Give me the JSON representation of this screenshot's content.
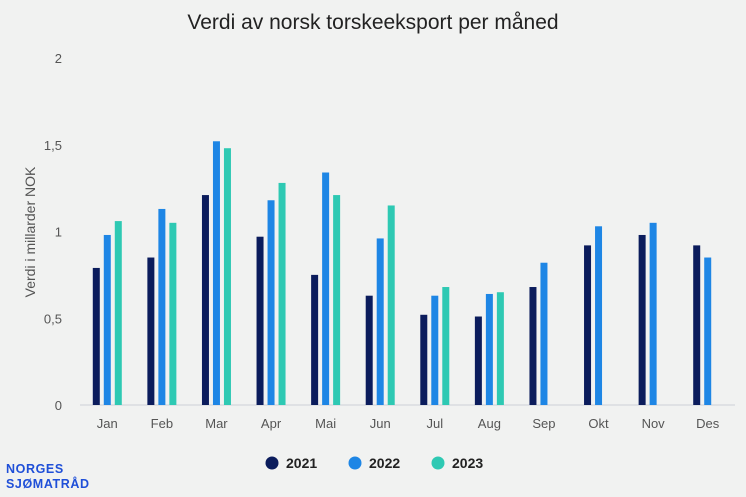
{
  "chart_data": {
    "type": "bar",
    "title": "Verdi av norsk torskeeksport per måned",
    "ylabel": "Verdi i millarder NOK",
    "xlabel": "",
    "categories": [
      "Jan",
      "Feb",
      "Mar",
      "Apr",
      "Mai",
      "Jun",
      "Jul",
      "Aug",
      "Sep",
      "Okt",
      "Nov",
      "Des"
    ],
    "ylim": [
      0,
      2
    ],
    "yticks": [
      {
        "value": 0,
        "label": "0"
      },
      {
        "value": 0.5,
        "label": "0,5"
      },
      {
        "value": 1,
        "label": "1"
      },
      {
        "value": 1.5,
        "label": "1,5"
      },
      {
        "value": 2,
        "label": "2"
      }
    ],
    "grid": false,
    "legend_position": "bottom-center",
    "series": [
      {
        "name": "2021",
        "color": "#0b1c5c",
        "values": [
          0.79,
          0.85,
          1.21,
          0.97,
          0.75,
          0.63,
          0.52,
          0.51,
          0.68,
          0.92,
          0.98,
          0.92
        ]
      },
      {
        "name": "2022",
        "color": "#1e86e5",
        "values": [
          0.98,
          1.13,
          1.52,
          1.18,
          1.34,
          0.96,
          0.63,
          0.64,
          0.82,
          1.03,
          1.05,
          0.85
        ]
      },
      {
        "name": "2023",
        "color": "#2ec9b3",
        "values": [
          1.06,
          1.05,
          1.48,
          1.28,
          1.21,
          1.15,
          0.68,
          0.65,
          null,
          null,
          null,
          null
        ]
      }
    ]
  },
  "logo": {
    "line1": "NORGES",
    "line2": "SJØMATRÅD"
  }
}
